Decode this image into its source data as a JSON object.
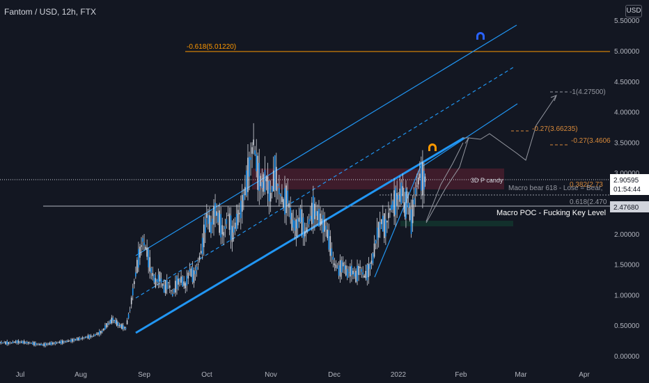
{
  "symbol": "Fantom / USD, 12h, FTX",
  "currency": "USD",
  "colors": {
    "background": "#131722",
    "axis_text": "#b2b5be",
    "price_line": "#ffffff",
    "candle": "#d1d4dc",
    "channel": "#2196f3",
    "fib_orange": "#ff9800",
    "fib_text_orange": "#d98a3a",
    "projection": "#9598a1",
    "pink_zone": "#4a1e2e",
    "green_zone": "#12302c",
    "icon_orange": "#ff9800",
    "icon_blue": "#2962ff"
  },
  "price_labels": {
    "current_price": "2.90595",
    "countdown": "01:54:44",
    "poc_price": "2.47680"
  },
  "annotations": {
    "fib_top": "-0.618(5.01220)",
    "fib_1": "-1(4.27500)",
    "fib_027a": "-0.27(3.66235)",
    "fib_027b": "-0.27(3.4606",
    "p_candle": "3D P candy",
    "macro_bear": "Macro bear 618 - Lose = Bear,",
    "fib_382": "0.382(2.73",
    "fib_618": "0.618(2.470",
    "macro_poc": "Macro POC - Fucking Key Level"
  },
  "chart_data": {
    "type": "line",
    "title": "Fantom / USD, 12h, FTX",
    "xlabel": "",
    "ylabel": "",
    "x_ticks": [
      "Jul",
      "Aug",
      "Sep",
      "Oct",
      "Nov",
      "Dec",
      "2022",
      "Feb",
      "Mar",
      "Apr"
    ],
    "y_ticks": [
      "5.50000",
      "5.00000",
      "4.50000",
      "4.00000",
      "3.50000",
      "3.00000",
      "2.50000",
      "2.00000",
      "1.50000",
      "1.00000",
      "0.50000",
      "0.00000"
    ],
    "ylim": [
      0,
      5.6
    ],
    "grid": false,
    "series": [
      {
        "values": [
          [
            0,
            0.22
          ],
          [
            4,
            0.21
          ],
          [
            8,
            0.23
          ],
          [
            12,
            0.22
          ],
          [
            16,
            0.2
          ],
          [
            20,
            0.18
          ],
          [
            24,
            0.2
          ],
          [
            28,
            0.22
          ],
          [
            32,
            0.24
          ],
          [
            36,
            0.27
          ],
          [
            40,
            0.3
          ],
          [
            44,
            0.33
          ],
          [
            48,
            0.4
          ],
          [
            50,
            0.5
          ],
          [
            53,
            0.6
          ],
          [
            56,
            0.5
          ],
          [
            59,
            0.45
          ],
          [
            61,
            0.75
          ],
          [
            63,
            1.2
          ],
          [
            65,
            1.6
          ],
          [
            67,
            1.9
          ],
          [
            69,
            1.7
          ],
          [
            71,
            1.4
          ],
          [
            73,
            1.2
          ],
          [
            75,
            1.3
          ],
          [
            77,
            1.1
          ],
          [
            79,
            1.2
          ],
          [
            81,
            1.0
          ],
          [
            83,
            1.2
          ],
          [
            85,
            1.25
          ],
          [
            87,
            1.15
          ],
          [
            89,
            1.4
          ],
          [
            91,
            1.3
          ],
          [
            93,
            1.5
          ],
          [
            95,
            1.8
          ],
          [
            97,
            2.3
          ],
          [
            99,
            2.1
          ],
          [
            101,
            2.4
          ],
          [
            103,
            2.2
          ],
          [
            105,
            2.0
          ],
          [
            107,
            2.3
          ],
          [
            109,
            2.0
          ],
          [
            111,
            2.2
          ],
          [
            113,
            2.4
          ],
          [
            115,
            2.7
          ],
          [
            117,
            3.1
          ],
          [
            119,
            3.5
          ],
          [
            121,
            3.0
          ],
          [
            123,
            2.8
          ],
          [
            125,
            2.9
          ],
          [
            127,
            2.6
          ],
          [
            129,
            3.0
          ],
          [
            131,
            2.7
          ],
          [
            133,
            2.5
          ],
          [
            135,
            2.6
          ],
          [
            137,
            2.2
          ],
          [
            139,
            2.1
          ],
          [
            141,
            2.3
          ],
          [
            143,
            2.0
          ],
          [
            145,
            2.2
          ],
          [
            147,
            2.4
          ],
          [
            149,
            2.3
          ],
          [
            151,
            2.2
          ],
          [
            153,
            2.1
          ],
          [
            155,
            1.8
          ],
          [
            157,
            1.5
          ],
          [
            159,
            1.4
          ],
          [
            161,
            1.5
          ],
          [
            163,
            1.35
          ],
          [
            165,
            1.4
          ],
          [
            167,
            1.3
          ],
          [
            169,
            1.45
          ],
          [
            171,
            1.3
          ],
          [
            173,
            1.4
          ],
          [
            175,
            1.6
          ],
          [
            177,
            2.0
          ],
          [
            179,
            2.2
          ],
          [
            181,
            2.1
          ],
          [
            183,
            2.4
          ],
          [
            185,
            2.5
          ],
          [
            187,
            2.6
          ],
          [
            189,
            2.7
          ],
          [
            190,
            2.4
          ],
          [
            191,
            2.6
          ],
          [
            193,
            2.2
          ],
          [
            195,
            2.7
          ],
          [
            197,
            2.95
          ],
          [
            199,
            2.88
          ],
          [
            200,
            2.91
          ]
        ]
      }
    ],
    "fib_levels": [
      {
        "label": "-0.618(5.01220)",
        "value": 5.0122
      },
      {
        "label": "2.47680",
        "value": 2.4768
      }
    ]
  }
}
